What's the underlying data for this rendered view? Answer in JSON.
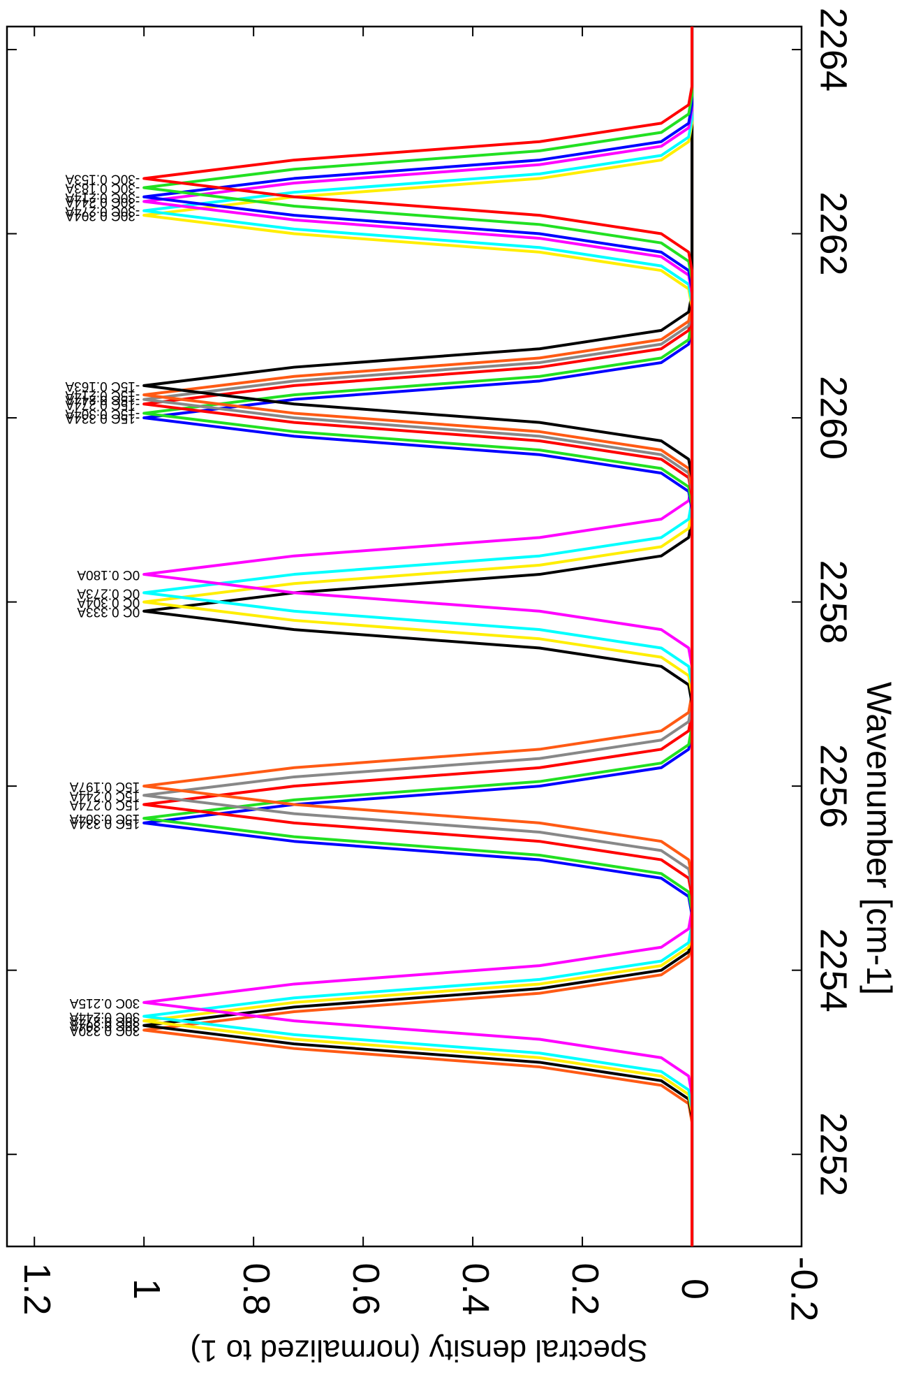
{
  "chart_data": {
    "type": "line",
    "xlabel": "Wavenumber [cm-1]",
    "ylabel": "Spectral density (normalized to 1)",
    "xlim": [
      2251,
      2264.25
    ],
    "xticks": [
      2252,
      2254,
      2256,
      2258,
      2260,
      2262,
      2264
    ],
    "ylim": [
      -0.2,
      1.25
    ],
    "yticks": [
      -0.2,
      0,
      0.2,
      0.4,
      0.6,
      0.8,
      1,
      1.2
    ],
    "series": [
      {
        "name": "30C 0.330A",
        "color": "#ff5a14",
        "x": [
          2251,
          2252.35,
          2252.55,
          2252.75,
          2252.95,
          2253.15,
          2253.35,
          2253.55,
          2253.75,
          2253.95,
          2254.15,
          2254.35,
          2264.25
        ],
        "values": [
          0,
          0,
          0.006,
          0.056,
          0.278,
          0.726,
          1,
          0.726,
          0.278,
          0.056,
          0.006,
          0,
          0
        ]
      },
      {
        "name": "30C 0.304A",
        "color": "#000000",
        "x": [
          2251,
          2252.4,
          2252.6,
          2252.8,
          2253,
          2253.2,
          2253.4,
          2253.6,
          2253.8,
          2254,
          2254.2,
          2254.4,
          2264.25
        ],
        "values": [
          0,
          0,
          0.006,
          0.056,
          0.278,
          0.726,
          1,
          0.726,
          0.278,
          0.056,
          0.006,
          0,
          0
        ]
      },
      {
        "name": "30C 0.274A",
        "color": "#ffee00",
        "x": [
          2251,
          2252.45,
          2252.65,
          2252.85,
          2253.05,
          2253.25,
          2253.45,
          2253.65,
          2253.85,
          2254.05,
          2254.25,
          2254.45,
          2264.25
        ],
        "values": [
          0,
          0,
          0.006,
          0.056,
          0.278,
          0.726,
          1,
          0.726,
          0.278,
          0.056,
          0.006,
          0,
          0
        ]
      },
      {
        "name": "30C 0.244A",
        "color": "#00ffff",
        "x": [
          2251,
          2252.5,
          2252.7,
          2252.9,
          2253.1,
          2253.3,
          2253.5,
          2253.7,
          2253.9,
          2254.1,
          2254.3,
          2254.5,
          2264.25
        ],
        "values": [
          0,
          0,
          0.006,
          0.056,
          0.278,
          0.726,
          1,
          0.726,
          0.278,
          0.056,
          0.006,
          0,
          0
        ]
      },
      {
        "name": "30C 0.215A",
        "color": "#ff00ff",
        "x": [
          2251,
          2252.65,
          2252.85,
          2253.05,
          2253.25,
          2253.45,
          2253.65,
          2253.85,
          2254.05,
          2254.25,
          2254.45,
          2254.65,
          2264.25
        ],
        "values": [
          0,
          0,
          0.006,
          0.056,
          0.278,
          0.726,
          1,
          0.726,
          0.278,
          0.056,
          0.006,
          0,
          0
        ]
      },
      {
        "name": "15C 0.334A",
        "color": "#0000ff",
        "x": [
          2251,
          2254.6,
          2254.8,
          2255,
          2255.2,
          2255.4,
          2255.6,
          2255.8,
          2256,
          2256.2,
          2256.4,
          2256.6,
          2264.25
        ],
        "values": [
          0,
          0,
          0.006,
          0.056,
          0.278,
          0.726,
          1,
          0.726,
          0.278,
          0.056,
          0.006,
          0,
          0
        ]
      },
      {
        "name": "15C 0.304A",
        "color": "#22e022",
        "x": [
          2251,
          2254.65,
          2254.85,
          2255.05,
          2255.25,
          2255.45,
          2255.65,
          2255.85,
          2256.05,
          2256.25,
          2256.45,
          2256.65,
          2264.25
        ],
        "values": [
          0,
          0,
          0.006,
          0.056,
          0.278,
          0.726,
          1,
          0.726,
          0.278,
          0.056,
          0.006,
          0,
          0
        ]
      },
      {
        "name": "15C 0.274A",
        "color": "#ff0000",
        "x": [
          2251,
          2254.8,
          2255,
          2255.2,
          2255.4,
          2255.6,
          2255.8,
          2256,
          2256.2,
          2256.4,
          2256.6,
          2256.8,
          2264.25
        ],
        "values": [
          0,
          0,
          0.006,
          0.056,
          0.278,
          0.726,
          1,
          0.726,
          0.278,
          0.056,
          0.006,
          0,
          0
        ]
      },
      {
        "name": "15C 0.244A",
        "color": "#888888",
        "x": [
          2251,
          2254.9,
          2255.1,
          2255.3,
          2255.5,
          2255.7,
          2255.9,
          2256.1,
          2256.3,
          2256.5,
          2256.7,
          2256.9,
          2264.25
        ],
        "values": [
          0,
          0,
          0.006,
          0.056,
          0.278,
          0.726,
          1,
          0.726,
          0.278,
          0.056,
          0.006,
          0,
          0
        ]
      },
      {
        "name": "15C 0.197A",
        "color": "#ff5a14",
        "x": [
          2251,
          2255,
          2255.2,
          2255.4,
          2255.6,
          2255.8,
          2256,
          2256.2,
          2256.4,
          2256.6,
          2256.8,
          2257,
          2264.25
        ],
        "values": [
          0,
          0,
          0.006,
          0.056,
          0.278,
          0.726,
          1,
          0.726,
          0.278,
          0.056,
          0.006,
          0,
          0
        ]
      },
      {
        "name": "0C 0.333A",
        "color": "#000000",
        "x": [
          2251,
          2256.9,
          2257.1,
          2257.3,
          2257.5,
          2257.7,
          2257.9,
          2258.1,
          2258.3,
          2258.5,
          2258.7,
          2258.9,
          2264.25
        ],
        "values": [
          0,
          0,
          0.006,
          0.056,
          0.278,
          0.726,
          1,
          0.726,
          0.278,
          0.056,
          0.006,
          0,
          0
        ]
      },
      {
        "name": "0C 0.304A",
        "color": "#ffee00",
        "x": [
          2251,
          2257,
          2257.2,
          2257.4,
          2257.6,
          2257.8,
          2258,
          2258.2,
          2258.4,
          2258.6,
          2258.8,
          2259,
          2264.25
        ],
        "values": [
          0,
          0,
          0.006,
          0.056,
          0.278,
          0.726,
          1,
          0.726,
          0.278,
          0.056,
          0.006,
          0,
          0
        ]
      },
      {
        "name": "0C 0.273A",
        "color": "#00ffff",
        "x": [
          2251,
          2257.1,
          2257.3,
          2257.5,
          2257.7,
          2257.9,
          2258.1,
          2258.3,
          2258.5,
          2258.7,
          2258.9,
          2259.1,
          2264.25
        ],
        "values": [
          0,
          0,
          0.006,
          0.056,
          0.278,
          0.726,
          1,
          0.726,
          0.278,
          0.056,
          0.006,
          0,
          0
        ]
      },
      {
        "name": "0C 0.180A",
        "color": "#ff00ff",
        "x": [
          2251,
          2257.3,
          2257.5,
          2257.7,
          2257.9,
          2258.1,
          2258.3,
          2258.5,
          2258.7,
          2258.9,
          2259.1,
          2259.3,
          2264.25
        ],
        "values": [
          0,
          0,
          0.006,
          0.056,
          0.278,
          0.726,
          1,
          0.726,
          0.278,
          0.056,
          0.006,
          0,
          0
        ]
      },
      {
        "name": "-15C 0.334A",
        "color": "#0000ff",
        "x": [
          2251,
          2259,
          2259.2,
          2259.4,
          2259.6,
          2259.8,
          2260,
          2260.2,
          2260.4,
          2260.6,
          2260.8,
          2261,
          2264.25
        ],
        "values": [
          0,
          0,
          0.006,
          0.056,
          0.278,
          0.726,
          1,
          0.726,
          0.278,
          0.056,
          0.006,
          0,
          0
        ]
      },
      {
        "name": "-15C 0.304A",
        "color": "#22e022",
        "x": [
          2251,
          2259.05,
          2259.25,
          2259.45,
          2259.65,
          2259.85,
          2260.05,
          2260.25,
          2260.45,
          2260.65,
          2260.85,
          2261.05,
          2264.25
        ],
        "values": [
          0,
          0,
          0.006,
          0.056,
          0.278,
          0.726,
          1,
          0.726,
          0.278,
          0.056,
          0.006,
          0,
          0
        ]
      },
      {
        "name": "-15C 0.274A",
        "color": "#ff0000",
        "x": [
          2251,
          2259.15,
          2259.35,
          2259.55,
          2259.75,
          2259.95,
          2260.15,
          2260.35,
          2260.55,
          2260.75,
          2260.95,
          2261.15,
          2264.25
        ],
        "values": [
          0,
          0,
          0.006,
          0.056,
          0.278,
          0.726,
          1,
          0.726,
          0.278,
          0.056,
          0.006,
          0,
          0
        ]
      },
      {
        "name": "-15C 0.244A",
        "color": "#888888",
        "x": [
          2251,
          2259.2,
          2259.4,
          2259.6,
          2259.8,
          2260,
          2260.2,
          2260.4,
          2260.6,
          2260.8,
          2261,
          2261.2,
          2264.25
        ],
        "values": [
          0,
          0,
          0.006,
          0.056,
          0.278,
          0.726,
          1,
          0.726,
          0.278,
          0.056,
          0.006,
          0,
          0
        ]
      },
      {
        "name": "-15C 0.214A",
        "color": "#ff5a14",
        "x": [
          2251,
          2259.25,
          2259.45,
          2259.65,
          2259.85,
          2260.05,
          2260.25,
          2260.45,
          2260.65,
          2260.85,
          2261.05,
          2261.25,
          2264.25
        ],
        "values": [
          0,
          0,
          0.006,
          0.056,
          0.278,
          0.726,
          1,
          0.726,
          0.278,
          0.056,
          0.006,
          0,
          0
        ]
      },
      {
        "name": "-15C 0.163A",
        "color": "#000000",
        "x": [
          2251,
          2259.35,
          2259.55,
          2259.75,
          2259.95,
          2260.15,
          2260.35,
          2260.55,
          2260.75,
          2260.95,
          2261.15,
          2261.35,
          2264.25
        ],
        "values": [
          0,
          0,
          0.006,
          0.056,
          0.278,
          0.726,
          1,
          0.726,
          0.278,
          0.056,
          0.006,
          0,
          0
        ]
      },
      {
        "name": "-30C 0.304A",
        "color": "#ffee00",
        "x": [
          2251,
          2261.2,
          2261.4,
          2261.6,
          2261.8,
          2262,
          2262.2,
          2262.4,
          2262.6,
          2262.8,
          2263,
          2263.2,
          2264.25
        ],
        "values": [
          0,
          0,
          0.006,
          0.056,
          0.278,
          0.726,
          1,
          0.726,
          0.278,
          0.056,
          0.006,
          0,
          0
        ]
      },
      {
        "name": "-30C 0.274A",
        "color": "#00ffff",
        "x": [
          2251,
          2261.25,
          2261.45,
          2261.65,
          2261.85,
          2262.05,
          2262.25,
          2262.45,
          2262.65,
          2262.85,
          2263.05,
          2263.25,
          2264.25
        ],
        "values": [
          0,
          0,
          0.006,
          0.056,
          0.278,
          0.726,
          1,
          0.726,
          0.278,
          0.056,
          0.006,
          0,
          0
        ]
      },
      {
        "name": "-30C 0.244A",
        "color": "#ff00ff",
        "x": [
          2251,
          2261.35,
          2261.55,
          2261.75,
          2261.95,
          2262.15,
          2262.35,
          2262.55,
          2262.75,
          2262.95,
          2263.15,
          2263.35,
          2264.25
        ],
        "values": [
          0,
          0,
          0.006,
          0.056,
          0.278,
          0.726,
          1,
          0.726,
          0.278,
          0.056,
          0.006,
          0,
          0
        ]
      },
      {
        "name": "-30C 0.214A",
        "color": "#0000ff",
        "x": [
          2251,
          2261.4,
          2261.6,
          2261.8,
          2262,
          2262.2,
          2262.4,
          2262.6,
          2262.8,
          2263,
          2263.2,
          2263.4,
          2264.25
        ],
        "values": [
          0,
          0,
          0.006,
          0.056,
          0.278,
          0.726,
          1,
          0.726,
          0.278,
          0.056,
          0.006,
          0,
          0
        ]
      },
      {
        "name": "-30C 0.183A",
        "color": "#22e022",
        "x": [
          2251,
          2261.5,
          2261.7,
          2261.9,
          2262.1,
          2262.3,
          2262.5,
          2262.7,
          2262.9,
          2263.1,
          2263.3,
          2263.5,
          2264.25
        ],
        "values": [
          0,
          0,
          0.006,
          0.056,
          0.278,
          0.726,
          1,
          0.726,
          0.278,
          0.056,
          0.006,
          0,
          0
        ]
      },
      {
        "name": "-30C 0.153A",
        "color": "#ff0000",
        "x": [
          2251,
          2261.6,
          2261.8,
          2262,
          2262.2,
          2262.4,
          2262.6,
          2262.8,
          2263,
          2263.2,
          2263.4,
          2263.6,
          2264.25
        ],
        "values": [
          0,
          0,
          0.006,
          0.056,
          0.278,
          0.726,
          1,
          0.726,
          0.278,
          0.056,
          0.006,
          0,
          0
        ]
      }
    ]
  }
}
